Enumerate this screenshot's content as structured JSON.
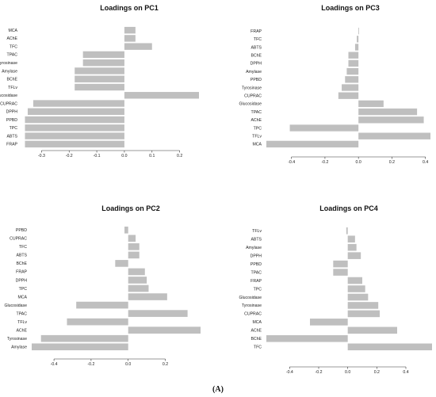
{
  "figure_label": "(A)",
  "chart_data": [
    {
      "type": "bar",
      "orientation": "horizontal",
      "title": "Loadings on PC1",
      "xticks": [
        -0.3,
        -0.2,
        -0.1,
        0.0,
        0.1,
        0.2
      ],
      "xtick_labels": [
        "-0.3",
        "-0.2",
        "-0.1",
        "0.0",
        "0.1",
        "0.2"
      ],
      "xlim": [
        -0.37,
        0.27
      ],
      "categories": [
        "MCA",
        "AChE",
        "TFC",
        "TPAC",
        "Tyrosinase",
        "Amylase",
        "BChE",
        "TFLv",
        "Glucosidase",
        "CUPRAC",
        "DPPH",
        "PPBD",
        "TPC",
        "ABTS",
        "FRAP"
      ],
      "values": [
        0.04,
        0.04,
        0.1,
        -0.15,
        -0.15,
        -0.18,
        -0.18,
        -0.18,
        0.27,
        -0.33,
        -0.35,
        -0.36,
        -0.36,
        -0.36,
        -0.36
      ]
    },
    {
      "type": "bar",
      "orientation": "horizontal",
      "title": "Loadings on PC3",
      "xticks": [
        -0.4,
        -0.2,
        0.0,
        0.2,
        0.4
      ],
      "xtick_labels": [
        "-0.4",
        "-0.2",
        "0.0",
        "0.2",
        "0.4"
      ],
      "xlim": [
        -0.55,
        0.43
      ],
      "categories": [
        "FRAP",
        "TFC",
        "ABTS",
        "BChE",
        "DPPH",
        "Amylase",
        "PPBD",
        "Tyrosinase",
        "CUPRAC",
        "Glucosidase",
        "TPAC",
        "AChE",
        "TPC",
        "TFLv",
        "MCA"
      ],
      "values": [
        0.0,
        -0.01,
        -0.02,
        -0.06,
        -0.06,
        -0.07,
        -0.08,
        -0.1,
        -0.12,
        0.15,
        0.35,
        0.39,
        -0.41,
        0.43,
        -0.55
      ]
    },
    {
      "type": "bar",
      "orientation": "horizontal",
      "title": "Loadings on PC2",
      "xticks": [
        -0.4,
        -0.2,
        0.0,
        0.2
      ],
      "xtick_labels": [
        "-0.4",
        "-0.2",
        "0.0",
        "0.2"
      ],
      "xlim": [
        -0.52,
        0.39
      ],
      "categories": [
        "PPBD",
        "CUPRAC",
        "TFC",
        "ABTS",
        "BChE",
        "FRAP",
        "DPPH",
        "TPC",
        "MCA",
        "Glucosidase",
        "TPAC",
        "TFLv",
        "AChE",
        "Tyrosinase",
        "Amylase"
      ],
      "values": [
        -0.02,
        0.04,
        0.06,
        0.06,
        -0.07,
        0.09,
        0.1,
        0.11,
        0.21,
        -0.28,
        0.32,
        -0.33,
        0.39,
        -0.47,
        -0.52
      ]
    },
    {
      "type": "bar",
      "orientation": "horizontal",
      "title": "Loadings on PC4",
      "xticks": [
        -0.4,
        -0.2,
        0.0,
        0.2,
        0.4
      ],
      "xtick_labels": [
        "-0.4",
        "-0.2",
        "0.0",
        "0.2",
        "0.4"
      ],
      "xlim": [
        -0.56,
        0.58
      ],
      "categories": [
        "TFLv",
        "ABTS",
        "Amylase",
        "DPPH",
        "PPBD",
        "TPAC",
        "FRAP",
        "TPC",
        "Glucosidase",
        "Tyrosinase",
        "CUPRAC",
        "MCA",
        "AChE",
        "BChE",
        "TFC"
      ],
      "values": [
        -0.01,
        0.05,
        0.06,
        0.09,
        -0.1,
        -0.1,
        0.1,
        0.12,
        0.14,
        0.21,
        0.22,
        -0.26,
        0.34,
        -0.56,
        0.58
      ]
    }
  ]
}
